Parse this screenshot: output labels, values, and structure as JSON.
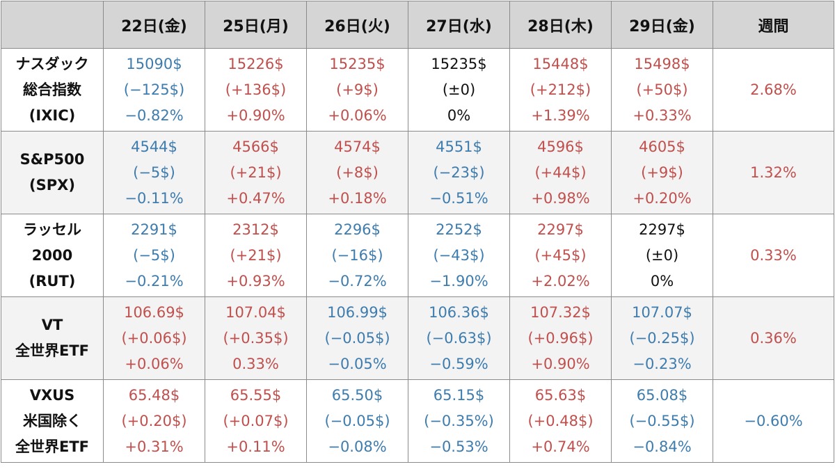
{
  "chart_data": {
    "type": "table",
    "colors": {
      "up": "#c0504d",
      "down": "#3e7cae",
      "flat": "#111111"
    },
    "header": {
      "corner": "",
      "days": [
        "22日(金)",
        "25日(月)",
        "26日(火)",
        "27日(水)",
        "28日(木)",
        "29日(金)"
      ],
      "weekly": "週間"
    },
    "rows": [
      {
        "label": [
          "ナスダック",
          "総合指数",
          "(IXIC)"
        ],
        "cells": [
          {
            "price": "15090$",
            "change": "(−125$)",
            "pct": "−0.82%",
            "trend": "down"
          },
          {
            "price": "15226$",
            "change": "(+136$)",
            "pct": "+0.90%",
            "trend": "up"
          },
          {
            "price": "15235$",
            "change": "(+9$)",
            "pct": "+0.06%",
            "trend": "up"
          },
          {
            "price": "15235$",
            "change": "(±0)",
            "pct": "0%",
            "trend": "flat"
          },
          {
            "price": "15448$",
            "change": "(+212$)",
            "pct": "+1.39%",
            "trend": "up"
          },
          {
            "price": "15498$",
            "change": "(+50$)",
            "pct": "+0.33%",
            "trend": "up"
          }
        ],
        "weekly": {
          "value": "2.68%",
          "trend": "up"
        }
      },
      {
        "label": [
          "S&P500",
          "(SPX)"
        ],
        "cells": [
          {
            "price": "4544$",
            "change": "(−5$)",
            "pct": "−0.11%",
            "trend": "down"
          },
          {
            "price": "4566$",
            "change": "(+21$)",
            "pct": "+0.47%",
            "trend": "up"
          },
          {
            "price": "4574$",
            "change": "(+8$)",
            "pct": "+0.18%",
            "trend": "up"
          },
          {
            "price": "4551$",
            "change": "(−23$)",
            "pct": "−0.51%",
            "trend": "down"
          },
          {
            "price": "4596$",
            "change": "(+44$)",
            "pct": "+0.98%",
            "trend": "up"
          },
          {
            "price": "4605$",
            "change": "(+9$)",
            "pct": "+0.20%",
            "trend": "up"
          }
        ],
        "weekly": {
          "value": "1.32%",
          "trend": "up"
        }
      },
      {
        "label": [
          "ラッセル",
          "2000",
          "(RUT)"
        ],
        "cells": [
          {
            "price": "2291$",
            "change": "(−5$)",
            "pct": "−0.21%",
            "trend": "down"
          },
          {
            "price": "2312$",
            "change": "(+21$)",
            "pct": "+0.93%",
            "trend": "up"
          },
          {
            "price": "2296$",
            "change": "(−16$)",
            "pct": "−0.72%",
            "trend": "down"
          },
          {
            "price": "2252$",
            "change": "(−43$)",
            "pct": "−1.90%",
            "trend": "down"
          },
          {
            "price": "2297$",
            "change": "(+45$)",
            "pct": "+2.02%",
            "trend": "up"
          },
          {
            "price": "2297$",
            "change": "(±0)",
            "pct": "0%",
            "trend": "flat"
          }
        ],
        "weekly": {
          "value": "0.33%",
          "trend": "up"
        }
      },
      {
        "label": [
          "VT",
          "全世界ETF"
        ],
        "cells": [
          {
            "price": "106.69$",
            "change": "(+0.06$)",
            "pct": "+0.06%",
            "trend": "up"
          },
          {
            "price": "107.04$",
            "change": "(+0.35$)",
            "pct": "0.33%",
            "trend": "up"
          },
          {
            "price": "106.99$",
            "change": "(−0.05$)",
            "pct": "−0.05%",
            "trend": "down"
          },
          {
            "price": "106.36$",
            "change": "(−0.63$)",
            "pct": "−0.59%",
            "trend": "down"
          },
          {
            "price": "107.32$",
            "change": "(+0.96$)",
            "pct": "+0.90%",
            "trend": "up"
          },
          {
            "price": "107.07$",
            "change": "(−0.25$)",
            "pct": "−0.23%",
            "trend": "down"
          }
        ],
        "weekly": {
          "value": "0.36%",
          "trend": "up"
        }
      },
      {
        "label": [
          "VXUS",
          "米国除く",
          "全世界ETF"
        ],
        "cells": [
          {
            "price": "65.48$",
            "change": "(+0.20$)",
            "pct": "+0.31%",
            "trend": "up"
          },
          {
            "price": "65.55$",
            "change": "(+0.07$)",
            "pct": "+0.11%",
            "trend": "up"
          },
          {
            "price": "65.50$",
            "change": "(−0.05$)",
            "pct": "−0.08%",
            "trend": "down"
          },
          {
            "price": "65.15$",
            "change": "(−0.35%)",
            "pct": "−0.53%",
            "trend": "down"
          },
          {
            "price": "65.63$",
            "change": "(+0.48$)",
            "pct": "+0.74%",
            "trend": "up"
          },
          {
            "price": "65.08$",
            "change": "(−0.55$)",
            "pct": "−0.84%",
            "trend": "down"
          }
        ],
        "weekly": {
          "value": "−0.60%",
          "trend": "down"
        }
      }
    ]
  }
}
